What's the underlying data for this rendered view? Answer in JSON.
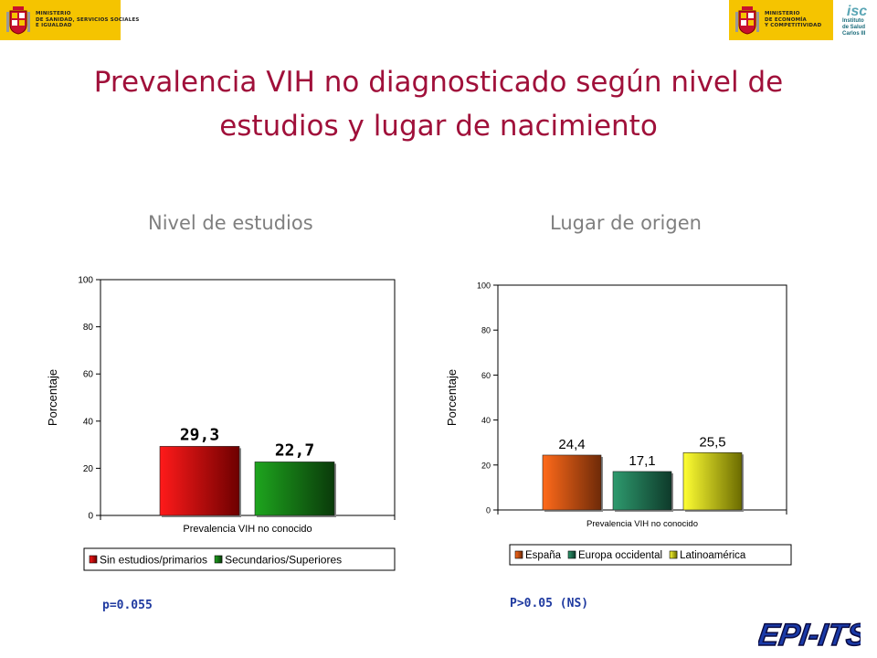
{
  "logos": {
    "left": [
      "MINISTERIO",
      "DE SANIDAD, SERVICIOS SOCIALES",
      "E IGUALDAD"
    ],
    "right": [
      "MINISTERIO",
      "DE ECONOMÍA",
      "Y COMPETITIVIDAD"
    ],
    "isciii_mark": "isc",
    "isciii": [
      "Instituto",
      "de Salud",
      "Carlos III"
    ]
  },
  "title_line1": "Prevalencia VIH no diagnosticado según nivel de",
  "title_line2": "estudios y lugar de nacimiento",
  "left_heading": "Nivel de estudios",
  "right_heading": "Lugar de origen",
  "left_pvalue": "p=0.055",
  "right_pvalue": "P>0.05 (NS)",
  "footer_logo": "EPI-ITS",
  "chart_data": [
    {
      "type": "bar",
      "title": "",
      "xlabel": "Prevalencia VIH no conocido",
      "ylabel": "Porcentaje",
      "ylim": [
        0,
        100
      ],
      "yticks": [
        0,
        20,
        40,
        60,
        80,
        100
      ],
      "grid": false,
      "legend": "bottom",
      "series": [
        {
          "name": "Sin estudios/primarios",
          "value": 29.3,
          "label": "29,3",
          "colors": [
            "#ff1a1a",
            "#6e0000"
          ]
        },
        {
          "name": "Secundarios/Superiores",
          "value": 22.7,
          "label": "22,7",
          "colors": [
            "#1ea51e",
            "#0a3a0a"
          ]
        }
      ]
    },
    {
      "type": "bar",
      "title": "",
      "xlabel": "Prevalencia VIH no conocido",
      "ylabel": "Porcentaje",
      "ylim": [
        0,
        100
      ],
      "yticks": [
        0,
        20,
        40,
        60,
        80,
        100
      ],
      "grid": false,
      "legend": "bottom",
      "series": [
        {
          "name": "España",
          "value": 24.4,
          "label": "24,4",
          "colors": [
            "#ff6a1a",
            "#6e2a08"
          ]
        },
        {
          "name": "Europa occidental",
          "value": 17.1,
          "label": "17,1",
          "colors": [
            "#2e9a6e",
            "#0e3a2a"
          ]
        },
        {
          "name": "Latinoamérica",
          "value": 25.5,
          "label": "25,5",
          "colors": [
            "#ffff33",
            "#6b6b00"
          ]
        }
      ]
    }
  ]
}
